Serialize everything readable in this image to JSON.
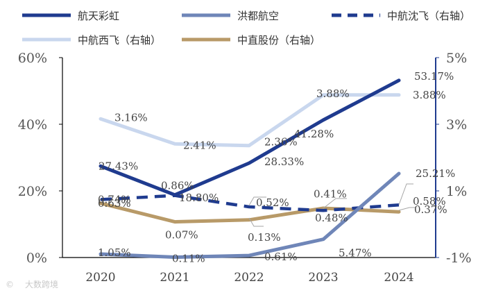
{
  "chart_data": {
    "type": "line",
    "categories": [
      "2020",
      "2021",
      "2022",
      "2023",
      "2024"
    ],
    "left_axis": {
      "ylim": [
        0,
        60
      ],
      "ticks": [
        "0%",
        "20%",
        "40%",
        "60%"
      ],
      "tick_values": [
        0,
        20,
        40,
        60
      ]
    },
    "right_axis": {
      "ylim": [
        -1,
        5
      ],
      "ticks": [
        "-1%",
        "1%",
        "3%",
        "5%"
      ],
      "tick_values": [
        -1,
        1,
        3,
        5
      ]
    },
    "series": [
      {
        "name": "航天彩虹",
        "axis": "left",
        "color": "#1f3b8f",
        "dash": false,
        "values": [
          27.43,
          18.8,
          28.33,
          41.28,
          53.17
        ],
        "labels": [
          "27.43%",
          "18.80%",
          "28.33%",
          "41.28%",
          "53.17%"
        ]
      },
      {
        "name": "洪都航空",
        "axis": "left",
        "color": "#6f86b8",
        "dash": false,
        "values": [
          1.05,
          0.11,
          0.61,
          5.47,
          25.21
        ],
        "labels": [
          "1.05%",
          "0.11%",
          "0.61%",
          "5.47%",
          "25.21%"
        ]
      },
      {
        "name": "中航沈飞（右轴）",
        "axis": "right",
        "color": "#1f3b8f",
        "dash": true,
        "values": [
          0.74,
          0.86,
          0.52,
          0.41,
          0.58
        ],
        "labels": [
          "0.74%",
          "0.86%",
          "0.52%",
          "0.41%",
          "0.58%"
        ]
      },
      {
        "name": "中航西飞（右轴）",
        "axis": "right",
        "color": "#c9d7ee",
        "dash": false,
        "values": [
          3.16,
          2.41,
          2.36,
          3.88,
          3.88
        ],
        "labels": [
          "3.16%",
          "2.41%",
          "2.36%",
          "3.88%",
          "3.88%"
        ]
      },
      {
        "name": "中直股份（右轴）",
        "axis": "right",
        "color": "#b89a68",
        "dash": false,
        "values": [
          0.63,
          0.07,
          0.13,
          0.48,
          0.37
        ],
        "labels": [
          "0.63%",
          "0.07%",
          "0.13%",
          "0.48%",
          "0.37%"
        ]
      }
    ]
  },
  "watermark": "大数跨境"
}
